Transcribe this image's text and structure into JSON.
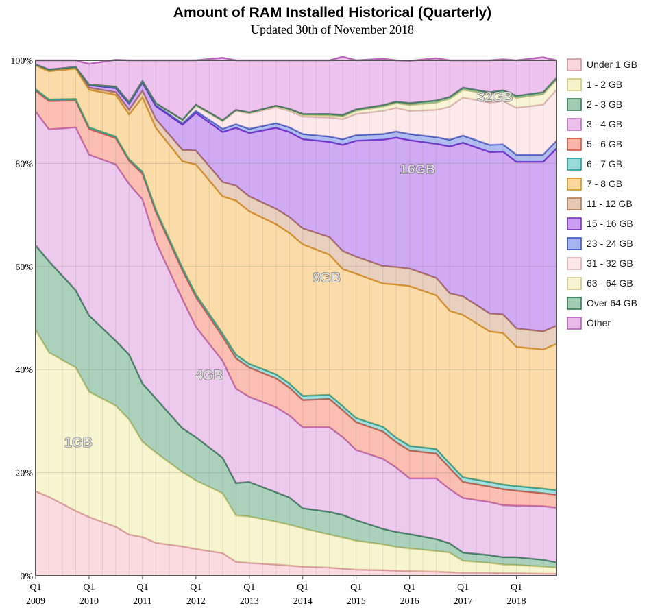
{
  "chart_data": {
    "type": "area",
    "stacked": true,
    "normalized": true,
    "title": "Amount of RAM Installed Historical (Quarterly)",
    "subtitle": "Updated 30th of November 2018",
    "ylim": [
      0,
      100
    ],
    "yticks": [
      "0%",
      "20%",
      "40%",
      "60%",
      "80%",
      "100%"
    ],
    "xtick_labels": [
      {
        "q": "Q1",
        "year": "2009"
      },
      {
        "q": "Q1",
        "year": "2010"
      },
      {
        "q": "Q1",
        "year": "2011"
      },
      {
        "q": "Q1",
        "year": "2012"
      },
      {
        "q": "Q1",
        "year": "2013"
      },
      {
        "q": "Q1",
        "year": "2014"
      },
      {
        "q": "Q1",
        "year": "2015"
      },
      {
        "q": "Q1",
        "year": "2016"
      },
      {
        "q": "Q1",
        "year": "2017"
      },
      {
        "q": "Q1",
        "year": "2018"
      }
    ],
    "x_start": 2009.0,
    "x_end": 2018.75,
    "x_points": [
      2009.0,
      2009.25,
      2009.75,
      2010.0,
      2010.5,
      2010.75,
      2011.0,
      2011.25,
      2011.75,
      2012.0,
      2012.5,
      2012.75,
      2013.0,
      2013.5,
      2013.75,
      2014.0,
      2014.5,
      2014.75,
      2015.0,
      2015.5,
      2015.75,
      2016.0,
      2016.5,
      2016.75,
      2017.0,
      2017.5,
      2017.75,
      2018.0,
      2018.5,
      2018.75
    ],
    "series": [
      {
        "name": "Under 1 GB",
        "color": "#f4a6b0",
        "values": [
          16.4,
          15.3,
          12.6,
          11.4,
          9.5,
          8.0,
          7.5,
          6.4,
          5.7,
          5.2,
          4.4,
          2.7,
          2.5,
          2.2,
          2.0,
          1.8,
          1.6,
          1.4,
          1.2,
          1.1,
          1.0,
          0.9,
          0.8,
          0.7,
          0.6,
          0.6,
          0.5,
          0.5,
          0.4,
          0.4
        ]
      },
      {
        "name": "1 - 2 GB",
        "color": "#ece58a",
        "values": [
          31.3,
          28.0,
          27.8,
          24.3,
          23.5,
          22.3,
          18.5,
          17.5,
          14.4,
          13.3,
          11.6,
          9.0,
          9.0,
          8.3,
          7.9,
          7.4,
          6.4,
          6.0,
          5.6,
          5.0,
          4.6,
          4.4,
          4.0,
          3.8,
          2.3,
          1.9,
          1.7,
          1.6,
          1.4,
          1.2
        ]
      },
      {
        "name": "2 - 3 GB",
        "color": "#2e8b57",
        "values": [
          16.4,
          17.7,
          15.0,
          14.8,
          12.6,
          12.6,
          11.3,
          10.5,
          8.5,
          8.4,
          6.9,
          6.3,
          6.7,
          5.7,
          5.3,
          3.9,
          4.4,
          4.4,
          4.0,
          3.0,
          2.9,
          2.8,
          2.3,
          1.8,
          1.6,
          1.5,
          1.4,
          1.5,
          1.3,
          1.0
        ]
      },
      {
        "name": "3 - 4 GB",
        "color": "#d478d4",
        "values": [
          26.0,
          25.6,
          31.6,
          31.2,
          34.2,
          33.1,
          35.7,
          30.4,
          25.0,
          21.4,
          18.8,
          18.3,
          16.5,
          16.5,
          15.9,
          15.7,
          16.4,
          15.1,
          13.6,
          13.6,
          12.5,
          10.8,
          11.8,
          10.5,
          10.6,
          10.3,
          10.1,
          10.0,
          10.4,
          10.6
        ]
      },
      {
        "name": "5 - 6 GB",
        "color": "#f25c42",
        "values": [
          4.0,
          5.5,
          5.2,
          5.0,
          5.1,
          4.5,
          5.0,
          5.8,
          5.6,
          5.8,
          4.7,
          5.9,
          5.7,
          5.6,
          5.4,
          5.3,
          5.5,
          5.2,
          5.4,
          5.3,
          4.9,
          5.4,
          4.8,
          4.1,
          3.1,
          3.0,
          3.1,
          2.9,
          2.5,
          2.5
        ]
      },
      {
        "name": "6 - 7 GB",
        "color": "#20b2aa",
        "values": [
          0.3,
          0.3,
          0.3,
          0.3,
          0.3,
          0.3,
          0.4,
          0.4,
          0.5,
          0.5,
          0.6,
          0.7,
          0.7,
          0.8,
          0.8,
          0.8,
          0.8,
          0.8,
          0.8,
          0.9,
          0.9,
          0.9,
          0.9,
          0.9,
          0.9,
          0.9,
          0.9,
          0.9,
          0.9,
          0.9
        ]
      },
      {
        "name": "7 - 8 GB",
        "color": "#f5a623",
        "values": [
          4.6,
          5.5,
          5.9,
          7.3,
          8.1,
          8.7,
          14.4,
          15.9,
          20.7,
          25.2,
          26.6,
          29.9,
          29.6,
          29.1,
          29.2,
          29.4,
          27.2,
          26.6,
          28.0,
          27.8,
          29.7,
          31.0,
          29.8,
          29.6,
          31.5,
          29.2,
          29.4,
          27.0,
          27.0,
          28.4
        ]
      },
      {
        "name": "11 - 12 GB",
        "color": "#c8885a",
        "values": [
          0.2,
          0.3,
          0.3,
          0.4,
          0.5,
          0.9,
          1.3,
          1.7,
          2.2,
          2.7,
          2.8,
          2.9,
          2.9,
          3.0,
          3.1,
          3.1,
          3.4,
          3.5,
          3.3,
          3.4,
          3.4,
          3.4,
          3.4,
          3.4,
          3.6,
          3.5,
          3.6,
          3.6,
          3.5,
          3.5
        ]
      },
      {
        "name": "15 - 16 GB",
        "color": "#8a2be2",
        "values": [
          0.0,
          0.0,
          0.0,
          0.5,
          0.8,
          1.2,
          1.6,
          2.5,
          4.9,
          7.3,
          9.7,
          11.2,
          12.3,
          15.7,
          16.5,
          17.3,
          18.5,
          20.6,
          22.5,
          24.5,
          25.1,
          24.9,
          26.0,
          28.5,
          29.8,
          31.3,
          31.6,
          32.3,
          32.9,
          34.4
        ]
      },
      {
        "name": "23 - 24 GB",
        "color": "#3b5bdb",
        "values": [
          0.0,
          0.0,
          0.0,
          0.0,
          0.1,
          0.1,
          0.1,
          0.2,
          0.3,
          0.4,
          0.6,
          0.7,
          0.8,
          0.9,
          0.9,
          1.0,
          1.0,
          1.1,
          1.1,
          1.1,
          1.2,
          1.2,
          1.3,
          1.3,
          1.4,
          1.4,
          1.4,
          1.4,
          1.4,
          1.5
        ]
      },
      {
        "name": "31 - 32 GB",
        "color": "#f9c7cd",
        "values": [
          0.0,
          0.0,
          0.0,
          0.1,
          0.2,
          0.2,
          0.2,
          0.4,
          0.6,
          1.0,
          1.5,
          2.6,
          3.0,
          3.1,
          3.2,
          3.4,
          3.7,
          3.9,
          4.1,
          4.5,
          4.6,
          4.5,
          5.3,
          6.4,
          7.4,
          8.2,
          8.4,
          9.1,
          9.7,
          9.9
        ]
      },
      {
        "name": "63 - 64 GB",
        "color": "#eee39a",
        "values": [
          0.0,
          0.0,
          0.0,
          0.0,
          0.0,
          0.0,
          0.0,
          0.0,
          0.0,
          0.1,
          0.1,
          0.1,
          0.1,
          0.2,
          0.2,
          0.3,
          0.4,
          0.5,
          0.6,
          0.8,
          0.9,
          1.1,
          1.4,
          1.5,
          1.5,
          1.6,
          1.7,
          1.9,
          2.0,
          1.9
        ]
      },
      {
        "name": "Over 64 GB",
        "color": "#2e8b57",
        "values": [
          0.0,
          0.0,
          0.0,
          0.0,
          0.0,
          0.0,
          0.0,
          0.0,
          0.1,
          0.1,
          0.1,
          0.1,
          0.1,
          0.1,
          0.2,
          0.2,
          0.3,
          0.3,
          0.3,
          0.3,
          0.3,
          0.4,
          0.4,
          0.4,
          0.4,
          0.4,
          0.4,
          0.4,
          0.4,
          0.4
        ]
      },
      {
        "name": "Other",
        "color": "#d166d1",
        "values": [
          0.8,
          1.8,
          1.3,
          4.0,
          5.2,
          8.1,
          4.0,
          8.3,
          11.5,
          8.6,
          12.1,
          9.6,
          10.1,
          8.8,
          9.4,
          10.4,
          10.4,
          11.3,
          9.5,
          9.0,
          8.0,
          8.2,
          8.2,
          7.1,
          5.3,
          6.2,
          6.0,
          6.9,
          6.8,
          3.4
        ]
      }
    ],
    "annotations": [
      {
        "text": "1GB",
        "x": 2009.8,
        "y": 25
      },
      {
        "text": "4GB",
        "x": 2012.25,
        "y": 38
      },
      {
        "text": "8GB",
        "x": 2014.45,
        "y": 57
      },
      {
        "text": "16GB",
        "x": 2016.15,
        "y": 78
      },
      {
        "text": "32GB",
        "x": 2017.6,
        "y": 92
      }
    ],
    "legend_position": "right",
    "grid": true
  }
}
